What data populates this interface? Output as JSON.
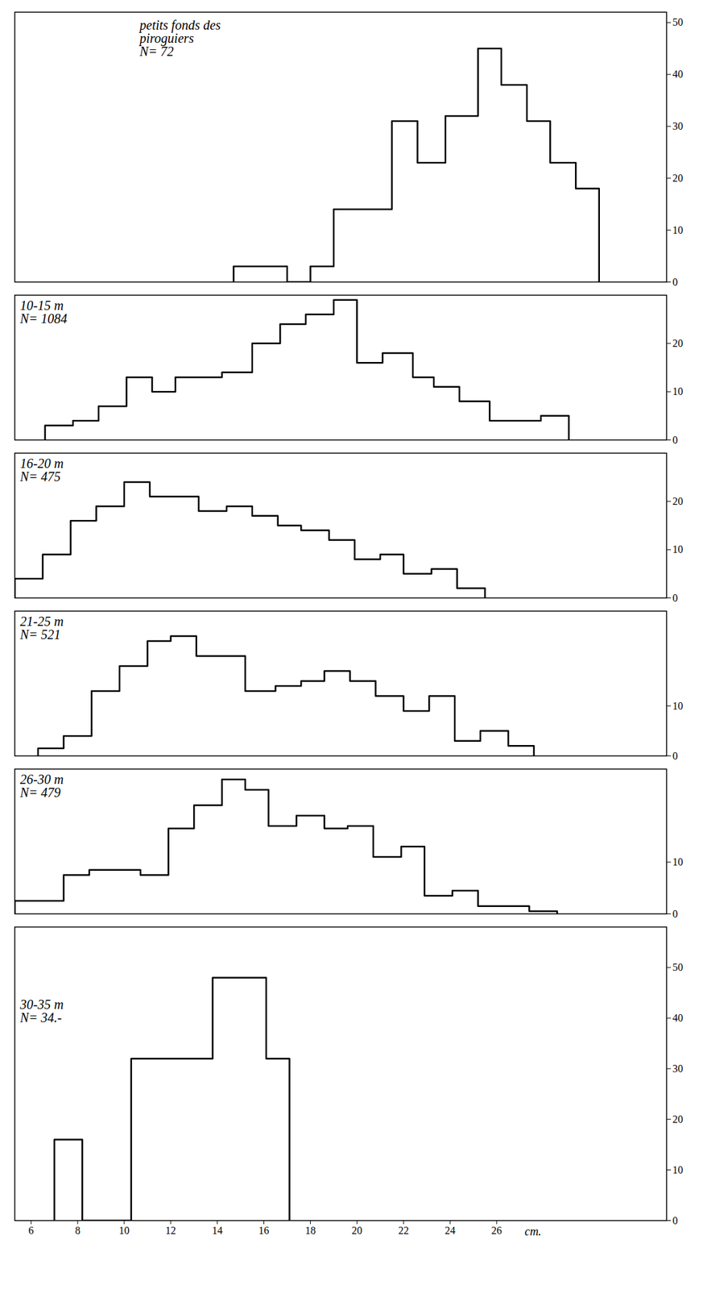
{
  "chart_data": [
    {
      "type": "histogram",
      "title": "petits fonds des piroguiers",
      "subtitle": "N= 72",
      "bins": [
        14.7,
        17.0,
        18.0,
        19.0,
        21.5,
        22.6,
        23.8,
        25.2,
        26.2,
        27.3,
        28.3,
        29.4,
        30.4
      ],
      "values": [
        3,
        0,
        3,
        14,
        31,
        23,
        32,
        45,
        38,
        31,
        23,
        18
      ],
      "color": "#000000",
      "xlim": [
        5.3,
        33.3
      ],
      "ylim": [
        0,
        52
      ],
      "yticks": [
        0,
        10,
        20,
        30,
        40,
        50
      ],
      "tick_labels": "y"
    },
    {
      "type": "histogram",
      "title": "10-15 m",
      "subtitle": "N= 1084",
      "bins": [
        6.6,
        7.8,
        8.9,
        10.1,
        11.2,
        12.2,
        14.2,
        15.5,
        16.7,
        17.8,
        19.0,
        20.0,
        21.1,
        22.4,
        23.3,
        24.4,
        25.7,
        27.9,
        29.1
      ],
      "values": [
        3,
        4,
        7,
        13,
        10,
        13,
        14,
        20,
        24,
        26,
        29,
        16,
        18,
        13,
        11,
        8,
        4,
        5
      ],
      "color": "#000000",
      "xlim": [
        5.3,
        33.3
      ],
      "ylim": [
        0,
        30
      ],
      "yticks": [
        0,
        10,
        20
      ],
      "tick_labels": "y"
    },
    {
      "type": "histogram",
      "title": "16-20 m",
      "subtitle": "N= 475",
      "bins": [
        5.3,
        6.5,
        7.7,
        8.8,
        10.0,
        11.1,
        12.2,
        13.2,
        14.4,
        15.5,
        16.6,
        17.6,
        18.8,
        19.9,
        21.0,
        22.0,
        23.2,
        24.3,
        25.5
      ],
      "values": [
        4,
        9,
        16,
        19,
        24,
        21,
        21,
        18,
        19,
        17,
        15,
        14,
        12,
        8,
        9,
        5,
        6,
        2
      ],
      "color": "#000000",
      "xlim": [
        5.3,
        33.3
      ],
      "ylim": [
        0,
        30
      ],
      "yticks": [
        0,
        10,
        20
      ],
      "tick_labels": "y"
    },
    {
      "type": "histogram",
      "title": "21-25 m",
      "subtitle": "N= 521",
      "bins": [
        6.3,
        7.4,
        8.6,
        9.8,
        11.0,
        12.0,
        13.1,
        15.2,
        16.5,
        17.6,
        18.6,
        19.7,
        20.8,
        22.0,
        23.1,
        24.2,
        25.3,
        26.5,
        27.6
      ],
      "values": [
        1.5,
        4,
        13,
        18,
        23,
        24,
        20,
        13,
        14,
        15,
        17,
        15,
        12,
        9,
        12,
        3,
        5,
        2
      ],
      "color": "#000000",
      "xlim": [
        5.3,
        33.3
      ],
      "ylim": [
        0,
        29
      ],
      "yticks": [
        0,
        10
      ],
      "tick_labels": "y"
    },
    {
      "type": "histogram",
      "title": "26-30 m",
      "subtitle": "N= 479",
      "bins": [
        5.3,
        7.4,
        8.5,
        10.7,
        11.9,
        13.0,
        14.2,
        15.2,
        16.2,
        17.4,
        18.6,
        19.6,
        20.7,
        21.9,
        22.9,
        24.1,
        25.2,
        27.4,
        28.6
      ],
      "values": [
        2.5,
        7.5,
        8.5,
        7.5,
        16.5,
        21,
        26,
        24,
        17,
        19,
        16.5,
        17,
        11,
        13,
        3.5,
        4.5,
        1.5,
        0.5
      ],
      "color": "#000000",
      "xlim": [
        5.3,
        33.3
      ],
      "ylim": [
        0,
        28
      ],
      "yticks": [
        0,
        10
      ],
      "tick_labels": "y"
    },
    {
      "type": "histogram",
      "title": "30-35 m",
      "subtitle": "N= 34.-",
      "bins": [
        7.0,
        8.2,
        10.3,
        13.8,
        16.1,
        17.1
      ],
      "values": [
        16,
        0,
        32,
        48,
        32
      ],
      "color": "#000000",
      "xlim": [
        5.3,
        33.3
      ],
      "ylim": [
        0,
        58
      ],
      "yticks": [
        0,
        10,
        20,
        30,
        40,
        50
      ],
      "xticks": [
        6,
        8,
        10,
        12,
        14,
        16,
        18,
        20,
        22,
        24,
        26
      ],
      "xlabel": "cm."
    }
  ]
}
